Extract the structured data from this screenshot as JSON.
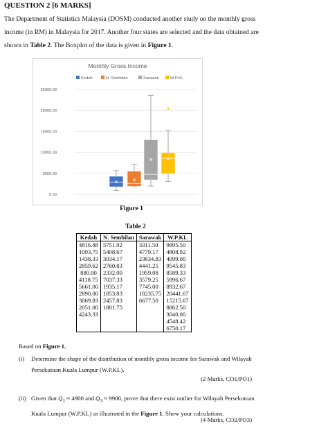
{
  "question": {
    "title": "QUESTION 2 [6 MARKS]",
    "intro_line1": "The Department of Statistics Malaysia (DOSM) conducted another study on the monthly gross",
    "intro_line2": "income (in RM) in Malaysia for 2017. Another four states are selected and the data obtained are",
    "intro_line3_a": "shown in ",
    "intro_line3_b": "Table 2",
    "intro_line3_c": ". The Boxplot of the data is given in ",
    "intro_line3_d": "Figure 1",
    "intro_line3_e": "."
  },
  "figure_label": "Figure 1",
  "table_label": "Table 2",
  "table": {
    "headers": [
      "Kedah",
      "N. Sembilan",
      "Sarawak",
      "W.P.KL"
    ],
    "columns": [
      [
        "4816.88",
        "1093.75",
        "1438.33",
        "2859.62",
        " 880.00",
        "4118.75",
        "5661.00",
        "2890.00",
        "3069.83",
        "2051.00",
        "4243.33"
      ],
      [
        "5751.92",
        "5408.67",
        "3034.17",
        "2760.83",
        "2332.00",
        "7037.33",
        "1935.17",
        "1853.83",
        "2457.83",
        "1801.75"
      ],
      [
        "3311.50",
        "4779.17",
        "23634.83",
        "4441.25",
        "1959.08",
        "3579.25",
        "7745.00",
        "18235.75",
        "6677.50"
      ],
      [
        "9995.50",
        "4808.92",
        "4099.00",
        "9545.83",
        "8589.33",
        "5996.67",
        "8932.67",
        "20441.67",
        "15215.67",
        "8862.50",
        "3040.00",
        "4548.42",
        "6750.17"
      ]
    ]
  },
  "chart_data": {
    "type": "boxplot",
    "title": "Monthly Gross Income",
    "legend_position": "top",
    "y_ticks": [
      "25000.00",
      "20000.00",
      "15000.00",
      "10000.00",
      "5000.00",
      "0.00"
    ],
    "ylim": [
      0,
      25000
    ],
    "grid": true,
    "series": [
      {
        "name": "Kedah",
        "color": "#4472c4",
        "min": 880,
        "q1": 1750,
        "median": 2890,
        "q3": 4300,
        "max": 5661,
        "mean": 2947,
        "outliers": []
      },
      {
        "name": "N. Sembilan",
        "color": "#ed7d31",
        "min": 1801.75,
        "q1": 1900,
        "median": 2609,
        "q3": 5500,
        "max": 7037,
        "mean": 3437,
        "outliers": []
      },
      {
        "name": "Sarawak",
        "color": "#a5a5a5",
        "min": 1959,
        "q1": 3400,
        "median": 4779,
        "q3": 13000,
        "max": 23635,
        "mean": 8262,
        "outliers": []
      },
      {
        "name": "W.P.KL",
        "color": "#ffc000",
        "min": 3040,
        "q1": 4900,
        "median": 8589,
        "q3": 9900,
        "max": 15216,
        "mean": 8525,
        "outliers": [
          20441.67
        ]
      }
    ]
  },
  "based_on_a": "Based on ",
  "based_on_b": "Figure 1",
  "based_on_c": ",",
  "qi": {
    "num": "(i)",
    "line1": "Determine the shape of the distribution of monthly gross income for Sarawak and Wilayah",
    "line2": "Persekutuan Kuala Lumpur (W.P.KL).",
    "marks": "(2 Marks, CO1/PO1)"
  },
  "qii": {
    "num": "(ii)",
    "line1_a": "Given that ",
    "q1_sym": "Q",
    "q1_sub": "1",
    "q1_val": " ≈ 4900 and ",
    "q3_sym": "Q",
    "q3_sub": "3",
    "q3_val": " ≈ 9900",
    "line1_b": ", prove that there exist outlier for Wilayah Persekutuan",
    "line2_a": "Kuala Lumpur (W.P.KL) as illustrated in the ",
    "line2_b": "Figure 1",
    "line2_c": ". Show your calculations.",
    "marks": "(4 Marks, CO2/PO3)"
  }
}
